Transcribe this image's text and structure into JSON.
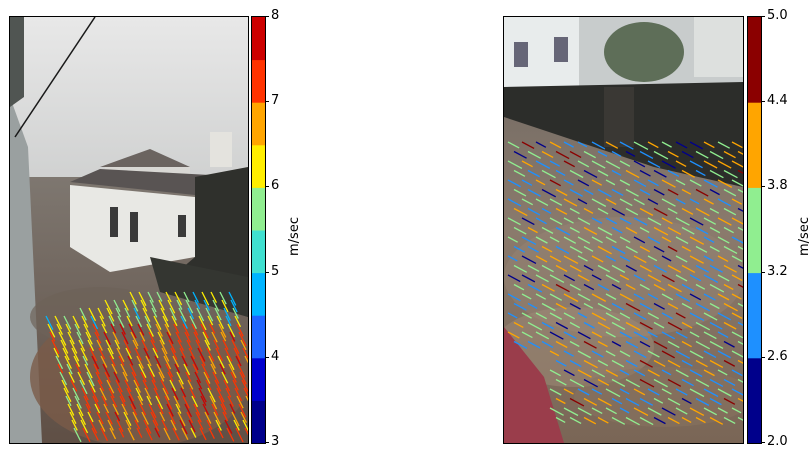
{
  "chart_data": [
    {
      "type": "scatter",
      "title": "",
      "description_visual": "video frame of flooded street with colored velocity vectors",
      "colorbar": {
        "label": "m/sec",
        "min": 3,
        "max": 8,
        "ticks": [
          "8",
          "7",
          "6",
          "5",
          "4",
          "3"
        ],
        "levels": [
          3.0,
          3.5,
          4.0,
          4.5,
          5.0,
          5.5,
          6.0,
          6.5,
          7.0,
          7.5,
          8.0
        ],
        "colors": [
          "#00008b",
          "#0000cd",
          "#1e64ff",
          "#00b4ff",
          "#40e0d0",
          "#90ee90",
          "#ffee00",
          "#ffa500",
          "#ff3300",
          "#cc0000"
        ]
      }
    },
    {
      "type": "scatter",
      "title": "",
      "description_visual": "video frame of muddy water flowing down a street with colored velocity vectors",
      "colorbar": {
        "label": "m/sec",
        "min": 2.0,
        "max": 5.0,
        "ticks": [
          "5.0",
          "4.4",
          "3.8",
          "3.2",
          "2.6",
          "2.0"
        ],
        "levels": [
          2.0,
          2.6,
          3.2,
          3.8,
          4.4,
          5.0
        ],
        "colors": [
          "#00008b",
          "#1e90ff",
          "#90ee90",
          "#ffa500",
          "#8b0000"
        ]
      }
    }
  ]
}
